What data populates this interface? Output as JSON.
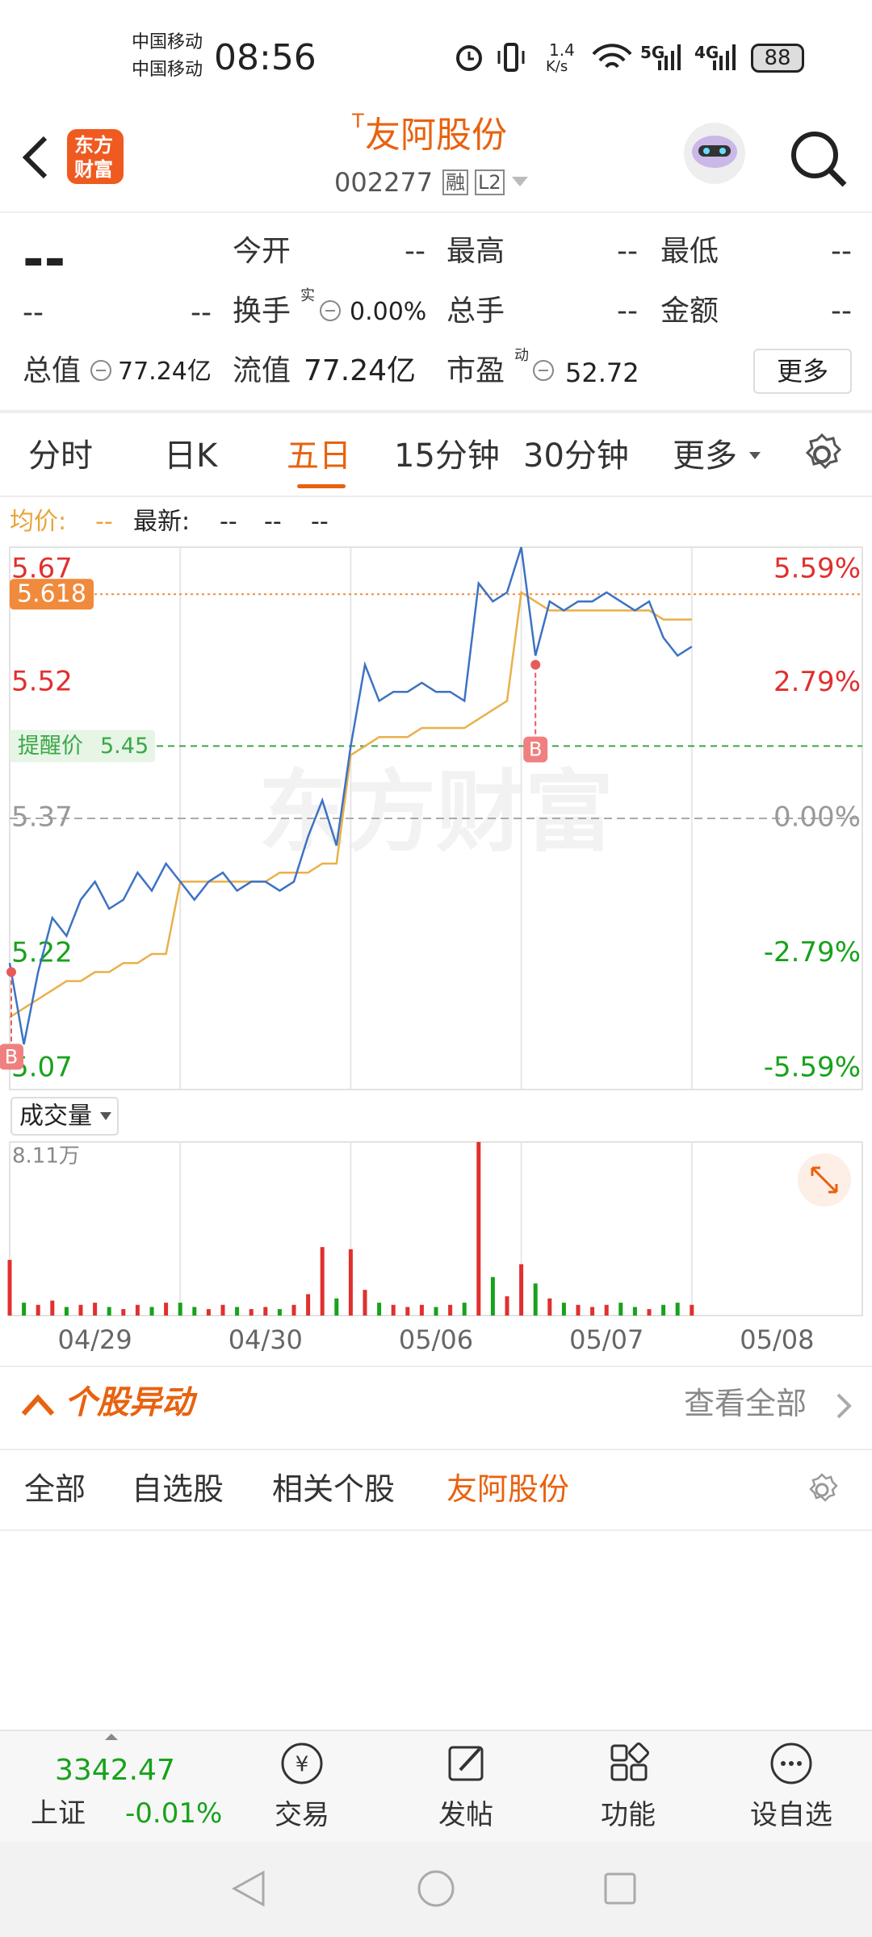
{
  "status_bar": {
    "carrier1": "中国移动",
    "carrier2": "中国移动",
    "time": "08:56",
    "speed": "1.4",
    "speed_unit": "K/s",
    "net1": "5G",
    "net2": "4G",
    "battery": "88"
  },
  "header": {
    "logo_line1": "东方",
    "logo_line2": "财富",
    "badge": "T",
    "title": "友阿股份",
    "code": "002277",
    "tag1": "融",
    "tag2": "L2"
  },
  "quote": {
    "price": "--",
    "change": "--",
    "change_pct": "--",
    "open": {
      "label": "今开",
      "value": "--"
    },
    "high": {
      "label": "最高",
      "value": "--"
    },
    "low": {
      "label": "最低",
      "value": "--"
    },
    "turnover": {
      "label": "换手",
      "sup": "实",
      "value": "0.00%"
    },
    "volume": {
      "label": "总手",
      "value": "--"
    },
    "amount": {
      "label": "金额",
      "value": "--"
    },
    "total_cap": {
      "label": "总值",
      "value": "77.24亿"
    },
    "float_cap": {
      "label": "流值",
      "value": "77.24亿"
    },
    "pe": {
      "label": "市盈",
      "sup": "动",
      "value": "52.72"
    },
    "more": "更多"
  },
  "tabs": {
    "items": [
      "分时",
      "日K",
      "五日",
      "15分钟",
      "30分钟"
    ],
    "active": 2,
    "more": "更多"
  },
  "legend_values": {
    "avg": "--",
    "latest": [
      "--",
      "--",
      "--"
    ]
  },
  "chart_data": [
    {
      "type": "line",
      "watermark": "东方财富",
      "x": [
        0,
        20,
        40,
        60,
        80,
        100,
        120,
        140,
        160,
        180,
        200,
        220,
        240,
        260,
        280,
        300,
        320,
        340,
        360,
        380,
        400,
        420,
        440,
        460,
        480,
        500,
        520,
        540,
        560,
        580,
        600,
        620,
        640,
        660,
        680,
        700,
        720,
        740,
        760,
        780,
        800,
        820,
        840,
        860,
        880,
        900,
        920,
        940,
        960
      ],
      "xlim": [
        0,
        1200
      ],
      "xticks": [
        {
          "value": 120,
          "label": "04/29"
        },
        {
          "value": 360,
          "label": "04/30"
        },
        {
          "value": 600,
          "label": "05/06"
        },
        {
          "value": 840,
          "label": "05/07"
        },
        {
          "value": 1080,
          "label": "05/08"
        }
      ],
      "ylim": [
        5.07,
        5.67
      ],
      "yticks": [
        5.67,
        5.52,
        5.37,
        5.22,
        5.07
      ],
      "y2lim": [
        -5.59,
        5.59
      ],
      "y2ticks": [
        {
          "value": 5.59,
          "label": "5.59%"
        },
        {
          "value": 2.79,
          "label": "2.79%"
        },
        {
          "value": 0,
          "label": "0.00%"
        },
        {
          "value": -2.79,
          "label": "-2.79%"
        },
        {
          "value": -5.59,
          "label": "-5.59%"
        }
      ],
      "series": [
        {
          "name": "最新:",
          "color": "#3d72c4",
          "values": [
            5.21,
            5.12,
            5.2,
            5.26,
            5.24,
            5.28,
            5.3,
            5.27,
            5.28,
            5.31,
            5.29,
            5.32,
            5.3,
            5.28,
            5.3,
            5.31,
            5.29,
            5.3,
            5.3,
            5.29,
            5.3,
            5.35,
            5.39,
            5.34,
            5.45,
            5.54,
            5.5,
            5.51,
            5.51,
            5.52,
            5.51,
            5.51,
            5.5,
            5.63,
            5.61,
            5.62,
            5.67,
            5.55,
            5.61,
            5.6,
            5.61,
            5.61,
            5.62,
            5.61,
            5.6,
            5.61,
            5.57,
            5.55,
            5.56
          ]
        },
        {
          "name": "均价:",
          "color": "#e9b04a",
          "values": [
            5.15,
            5.16,
            5.17,
            5.18,
            5.19,
            5.19,
            5.2,
            5.2,
            5.21,
            5.21,
            5.22,
            5.22,
            5.3,
            5.3,
            5.3,
            5.3,
            5.3,
            5.3,
            5.3,
            5.31,
            5.31,
            5.31,
            5.32,
            5.32,
            5.44,
            5.45,
            5.46,
            5.46,
            5.46,
            5.47,
            5.47,
            5.47,
            5.47,
            5.48,
            5.49,
            5.5,
            5.62,
            5.61,
            5.6,
            5.6,
            5.6,
            5.6,
            5.6,
            5.6,
            5.6,
            5.6,
            5.59,
            5.59,
            5.59
          ]
        }
      ],
      "last_price": {
        "value": 5.618,
        "label": "5.618",
        "color": "#f08a3c"
      },
      "alert": {
        "label": "提醒价",
        "value": 5.45,
        "color": "#3aa845"
      },
      "markers": [
        {
          "label": "B",
          "x": 0,
          "value": 5.2
        },
        {
          "label": "B",
          "x": 740,
          "value": 5.54
        }
      ]
    },
    {
      "type": "bar",
      "title": "成交量",
      "x": [
        0,
        20,
        40,
        60,
        80,
        100,
        120,
        140,
        160,
        180,
        200,
        220,
        240,
        260,
        280,
        300,
        320,
        340,
        360,
        380,
        400,
        420,
        440,
        460,
        480,
        500,
        520,
        540,
        560,
        580,
        600,
        620,
        640,
        660,
        680,
        700,
        720,
        740,
        760,
        780,
        800,
        820,
        840,
        860,
        880,
        900,
        920,
        940,
        960
      ],
      "ylim": [
        0,
        8.11
      ],
      "yticks": [
        {
          "value": 8.11,
          "label": "8.11万"
        }
      ],
      "values": [
        2.6,
        0.6,
        0.5,
        0.7,
        0.4,
        0.5,
        0.6,
        0.4,
        0.3,
        0.5,
        0.4,
        0.6,
        0.6,
        0.4,
        0.3,
        0.5,
        0.4,
        0.3,
        0.4,
        0.3,
        0.5,
        1.0,
        3.2,
        0.8,
        3.1,
        1.2,
        0.6,
        0.5,
        0.4,
        0.5,
        0.4,
        0.5,
        0.6,
        8.11,
        1.8,
        0.9,
        2.4,
        1.5,
        0.8,
        0.6,
        0.5,
        0.4,
        0.5,
        0.6,
        0.4,
        0.3,
        0.5,
        0.6,
        0.5
      ]
    }
  ],
  "section": {
    "title": "个股异动",
    "view_all": "查看全部",
    "tabs": [
      "全部",
      "自选股",
      "相关个股",
      "友阿股份"
    ],
    "active": 3
  },
  "bottom_bar": {
    "index_value": "3342.47",
    "index_name": "上证",
    "index_change": "-0.01%",
    "items": [
      "交易",
      "发帖",
      "功能",
      "设自选"
    ]
  }
}
